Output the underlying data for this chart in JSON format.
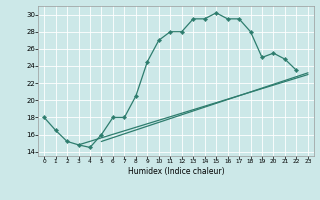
{
  "xlabel": "Humidex (Indice chaleur)",
  "bg_color": "#cce8e8",
  "grid_color": "#ffffff",
  "line_color": "#2e7d6e",
  "xlim": [
    -0.5,
    23.5
  ],
  "ylim": [
    13.5,
    31.0
  ],
  "xticks": [
    0,
    1,
    2,
    3,
    4,
    5,
    6,
    7,
    8,
    9,
    10,
    11,
    12,
    13,
    14,
    15,
    16,
    17,
    18,
    19,
    20,
    21,
    22,
    23
  ],
  "yticks": [
    14,
    16,
    18,
    20,
    22,
    24,
    26,
    28,
    30
  ],
  "curve1_x": [
    0,
    1,
    2,
    3,
    4,
    5,
    6,
    7,
    8,
    9,
    10,
    11,
    12,
    13,
    14,
    15,
    16,
    17,
    18,
    19,
    20,
    21,
    22
  ],
  "curve1_y": [
    18.0,
    16.5,
    15.2,
    14.8,
    14.5,
    16.0,
    18.0,
    18.0,
    20.5,
    24.5,
    27.0,
    28.0,
    28.0,
    29.5,
    29.5,
    30.2,
    29.5,
    29.5,
    28.0,
    25.0,
    25.5,
    24.8,
    23.5
  ],
  "line1_x": [
    3,
    23
  ],
  "line1_y": [
    14.8,
    23.0
  ],
  "line2_x": [
    5,
    23
  ],
  "line2_y": [
    15.2,
    23.2
  ]
}
